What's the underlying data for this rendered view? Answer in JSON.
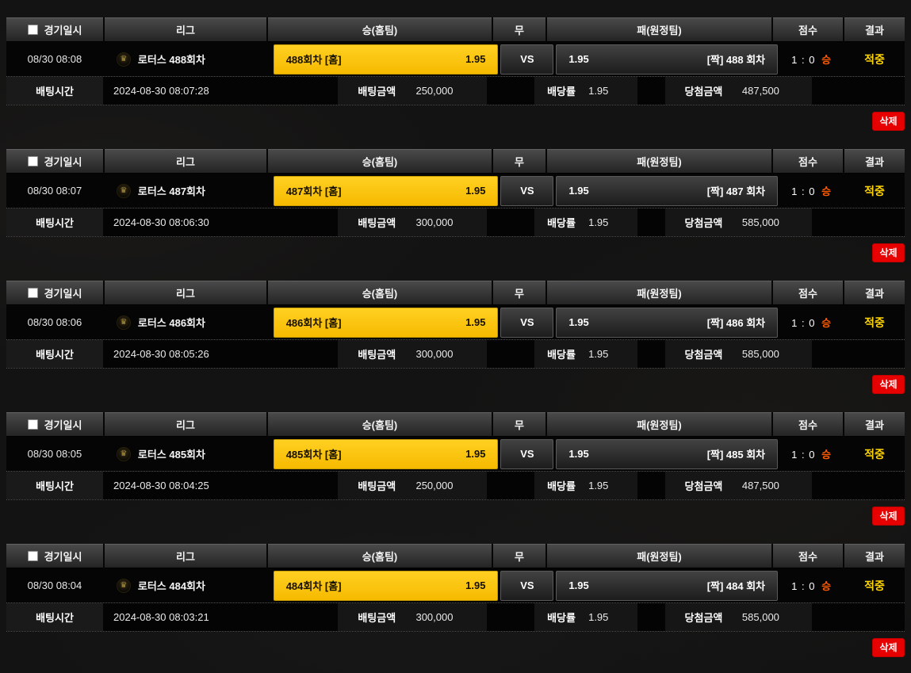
{
  "colors": {
    "pick_yellow": "#f6ba00",
    "result_yellow": "#ffd400",
    "score_win_orange": "#ff5a00",
    "delete_red": "#e60000",
    "header_gray": "#3a3a3a",
    "background": "#131313"
  },
  "header": {
    "datetime": "경기일시",
    "league": "리그",
    "home": "승(홈팀)",
    "draw": "무",
    "away": "패(원정팀)",
    "score": "점수",
    "result": "결과"
  },
  "labels": {
    "vs": "VS",
    "bet_time": "배팅시간",
    "bet_amount": "배팅금액",
    "odds": "배당률",
    "win_amount": "당첨금액",
    "delete": "삭제"
  },
  "league_icon": {
    "name": "lotus-crown-emblem",
    "glyph": "♛"
  },
  "rows": [
    {
      "datetime": "08/30 08:08",
      "league": "로터스 488회차",
      "home_name": "488회차 [홈]",
      "home_odds": "1.95",
      "away_odds": "1.95",
      "away_name": "[짝] 488 회차",
      "score": "1 : 0",
      "score_result": "승",
      "result": "적중",
      "bet_time": "2024-08-30 08:07:28",
      "bet_amount": "250,000",
      "odds": "1.95",
      "win_amount": "487,500"
    },
    {
      "datetime": "08/30 08:07",
      "league": "로터스 487회차",
      "home_name": "487회차 [홈]",
      "home_odds": "1.95",
      "away_odds": "1.95",
      "away_name": "[짝] 487 회차",
      "score": "1 : 0",
      "score_result": "승",
      "result": "적중",
      "bet_time": "2024-08-30 08:06:30",
      "bet_amount": "300,000",
      "odds": "1.95",
      "win_amount": "585,000"
    },
    {
      "datetime": "08/30 08:06",
      "league": "로터스 486회차",
      "home_name": "486회차 [홈]",
      "home_odds": "1.95",
      "away_odds": "1.95",
      "away_name": "[짝] 486 회차",
      "score": "1 : 0",
      "score_result": "승",
      "result": "적중",
      "bet_time": "2024-08-30 08:05:26",
      "bet_amount": "300,000",
      "odds": "1.95",
      "win_amount": "585,000"
    },
    {
      "datetime": "08/30 08:05",
      "league": "로터스 485회차",
      "home_name": "485회차 [홈]",
      "home_odds": "1.95",
      "away_odds": "1.95",
      "away_name": "[짝] 485 회차",
      "score": "1 : 0",
      "score_result": "승",
      "result": "적중",
      "bet_time": "2024-08-30 08:04:25",
      "bet_amount": "250,000",
      "odds": "1.95",
      "win_amount": "487,500"
    },
    {
      "datetime": "08/30 08:04",
      "league": "로터스 484회차",
      "home_name": "484회차 [홈]",
      "home_odds": "1.95",
      "away_odds": "1.95",
      "away_name": "[짝] 484 회차",
      "score": "1 : 0",
      "score_result": "승",
      "result": "적중",
      "bet_time": "2024-08-30 08:03:21",
      "bet_amount": "300,000",
      "odds": "1.95",
      "win_amount": "585,000"
    }
  ]
}
